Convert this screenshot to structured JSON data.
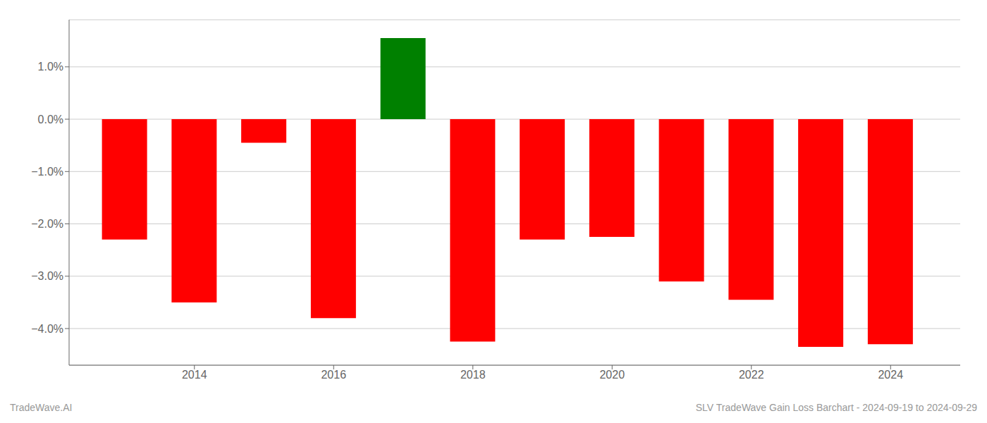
{
  "chart_data": {
    "type": "bar",
    "x": [
      2013,
      2014,
      2015,
      2016,
      2017,
      2018,
      2019,
      2020,
      2021,
      2022,
      2023,
      2024
    ],
    "values": [
      -2.3,
      -3.5,
      -0.45,
      -3.8,
      1.55,
      -4.25,
      -2.3,
      -2.25,
      -3.1,
      -3.45,
      -4.35,
      -4.3
    ],
    "colors": [
      "#ff0000",
      "#ff0000",
      "#ff0000",
      "#ff0000",
      "#008000",
      "#ff0000",
      "#ff0000",
      "#ff0000",
      "#ff0000",
      "#ff0000",
      "#ff0000",
      "#ff0000"
    ],
    "xlim": [
      2012.2,
      2025.0
    ],
    "xticks": [
      2014,
      2016,
      2018,
      2020,
      2022,
      2024
    ],
    "ylim": [
      -4.7,
      1.9
    ],
    "yticks": [
      {
        "value": -4.0,
        "label": "−4.0%"
      },
      {
        "value": -3.0,
        "label": "−3.0%"
      },
      {
        "value": -2.0,
        "label": "−2.0%"
      },
      {
        "value": -1.0,
        "label": "−1.0%"
      },
      {
        "value": 0.0,
        "label": "0.0%"
      },
      {
        "value": 1.0,
        "label": "1.0%"
      }
    ],
    "grid": true,
    "annotations": [
      "TradeWave.AI",
      "SLV TradeWave Gain Loss Barchart - 2024-09-19 to 2024-09-29"
    ]
  }
}
